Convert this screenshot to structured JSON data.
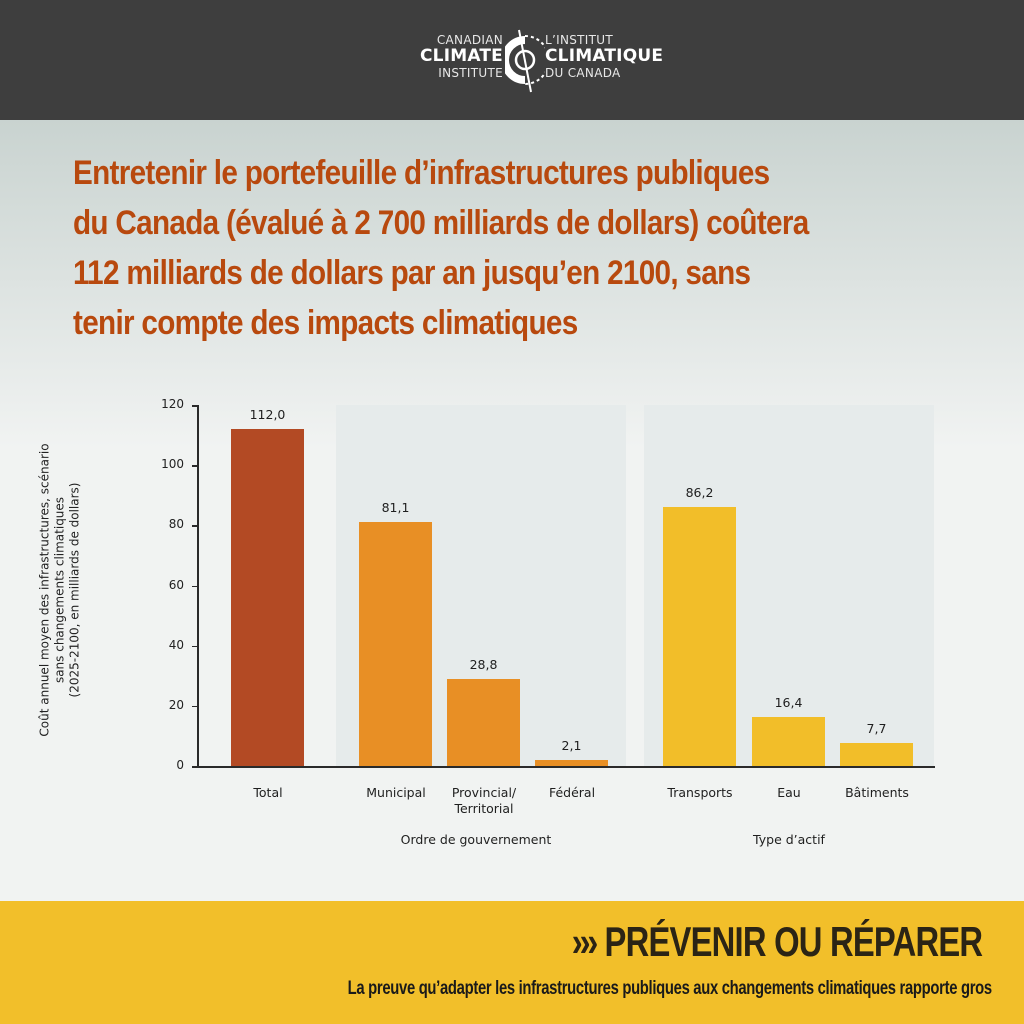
{
  "header": {
    "logo_en": {
      "line1": "CANADIAN",
      "line2": "CLIMATE",
      "line3": "INSTITUTE"
    },
    "logo_fr": {
      "line1": "L’INSTITUT",
      "line2": "CLIMATIQUE",
      "line3": "DU CANADA"
    },
    "background": "#3e3e3e"
  },
  "headline": {
    "lines": [
      "Entretenir le portefeuille d’infrastructures publiques",
      "du Canada (évalué à 2 700 milliards de dollars) coûtera",
      "112 milliards de dollars par an jusqu’en 2100, sans",
      "tenir compte des impacts climatiques"
    ],
    "color": "#b8490e"
  },
  "chart_data": {
    "type": "bar",
    "title": "",
    "xlabel": "",
    "ylabel": "Coût annuel moyen des infrastructures, scénario sans changements climatiques (2025-2100, en milliards de dollars)",
    "ylabel_lines": [
      "Coût annuel moyen des infrastructures, scénario",
      "sans changements climatiques",
      "(2025-2100, en milliards de dollars)"
    ],
    "ylim": [
      0,
      120
    ],
    "yticks": [
      0,
      20,
      40,
      60,
      80,
      100,
      120
    ],
    "grid": false,
    "categories": [
      "Total",
      "Municipal",
      "Provincial/ Territorial",
      "Fédéral",
      "Transports",
      "Eau",
      "Bâtiments"
    ],
    "values": [
      112.0,
      81.1,
      28.8,
      2.1,
      86.2,
      16.4,
      7.7
    ],
    "value_labels": [
      "112,0",
      "81,1",
      "28,8",
      "2,1",
      "86,2",
      "16,4",
      "7,7"
    ],
    "colors": [
      "#b34a24",
      "#e88f25",
      "#e88f25",
      "#e88f25",
      "#f2be29",
      "#f2be29",
      "#f2be29"
    ],
    "groups": [
      {
        "name": "Ordre de gouvernement",
        "categories": [
          "Municipal",
          "Provincial/ Territorial",
          "Fédéral"
        ]
      },
      {
        "name": "Type d’actif",
        "categories": [
          "Transports",
          "Eau",
          "Bâtiments"
        ]
      }
    ]
  },
  "footer": {
    "title": "PRÉVENIR OU RÉPARER",
    "arrows": "›››",
    "subtitle": "La preuve qu’adapter les infrastructures publiques aux changements climatiques rapporte gros",
    "background": "#f2bf2a"
  }
}
